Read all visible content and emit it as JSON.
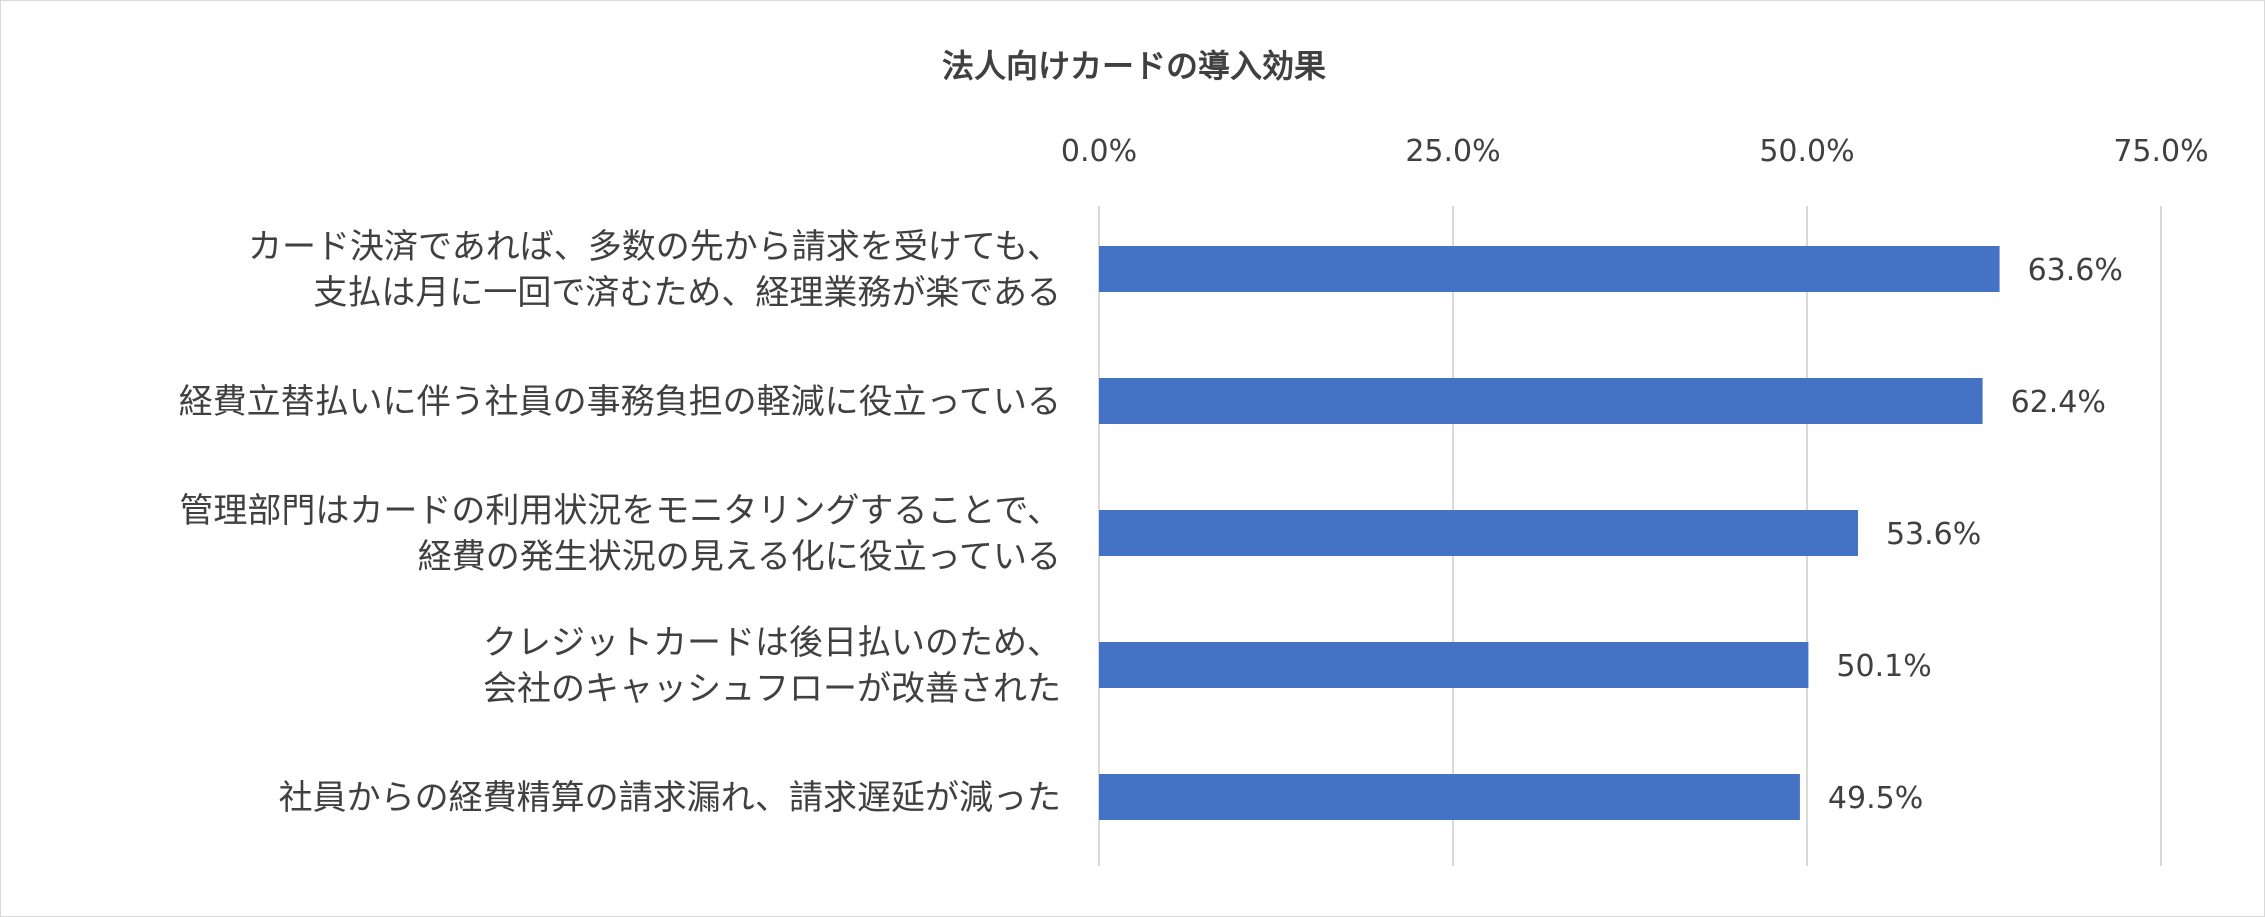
{
  "chart_data": {
    "type": "bar",
    "orientation": "horizontal",
    "title": "法人向けカードの導入効果",
    "categories": [
      [
        "カード決済であれば、多数の先から請求を受けても、",
        "支払は月に一回で済むため、経理業務が楽である"
      ],
      [
        "経費立替払いに伴う社員の事務負担の軽減に役立っている"
      ],
      [
        "管理部門はカードの利用状況をモニタリングすることで、",
        "経費の発生状況の見える化に役立っている"
      ],
      [
        "クレジットカードは後日払いのため、",
        "会社のキャッシュフローが改善された"
      ],
      [
        "社員からの経費精算の請求漏れ、請求遅延が減った"
      ]
    ],
    "values": [
      63.6,
      62.4,
      53.6,
      50.1,
      49.5
    ],
    "value_labels": [
      "63.6%",
      "62.4%",
      "53.6%",
      "50.1%",
      "49.5%"
    ],
    "x_ticks": [
      0,
      25,
      50,
      75
    ],
    "x_tick_labels": [
      "0.0%",
      "25.0%",
      "50.0%",
      "75.0%"
    ],
    "xlim": [
      0,
      75
    ],
    "x_axis_position": "top",
    "grid": true,
    "legend": "none",
    "bar_color": "#4472c4",
    "gridline_color": "#d9d9d9",
    "text_color": "#404040"
  }
}
